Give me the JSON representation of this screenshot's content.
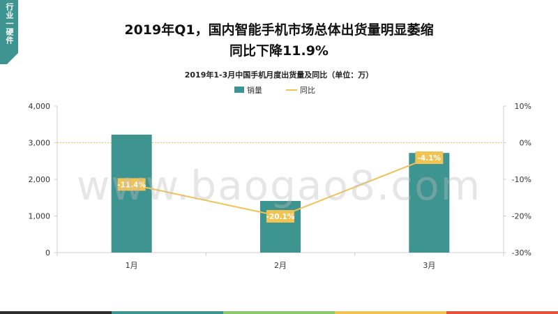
{
  "side_tag": "行业一硬件",
  "title_line1": "2019年Q1，国内智能手机市场总体出货量明显萎缩",
  "title_line2": "同比下降11.9%",
  "watermark": "www.baogao8.com",
  "colors": {
    "bar": "#3e9490",
    "line": "#f0c353",
    "label_bg": "#f0c353",
    "zero_line": "#f0c353",
    "tag": "#3e9490",
    "strip": [
      "#2e2e2e",
      "#3e9490",
      "#8cc66d",
      "#f0c353",
      "#e5533d"
    ]
  },
  "chart_data": {
    "type": "bar+line",
    "title": "2019年1-3月中国手机月度出货量及同比（单位：万）",
    "categories": [
      "1月",
      "2月",
      "3月"
    ],
    "legend_position": "top",
    "series": [
      {
        "name": "销量",
        "type": "bar",
        "axis": "left",
        "values": [
          3220,
          1410,
          2720
        ]
      },
      {
        "name": "同比",
        "type": "line",
        "axis": "right",
        "values": [
          -11.4,
          -20.1,
          -4.1
        ],
        "labels": [
          "-11.4%",
          "-20.1%",
          "-4.1%"
        ]
      }
    ],
    "y_left": {
      "min": 0,
      "max": 4000,
      "ticks": [
        "0",
        "1,000",
        "2,000",
        "3,000",
        "4,000"
      ]
    },
    "y_right": {
      "min": -30,
      "max": 10,
      "ticks": [
        "-30%",
        "-20%",
        "-10%",
        "0%",
        "10%"
      ]
    },
    "grid": false
  }
}
